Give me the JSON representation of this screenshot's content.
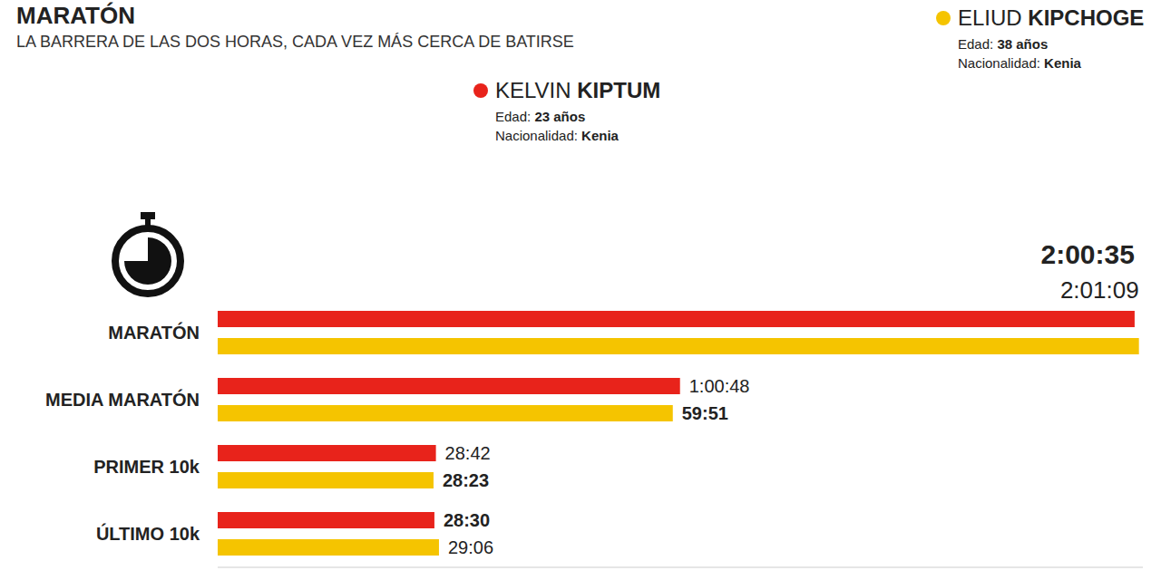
{
  "chart_data": {
    "type": "bar",
    "title": "MARATÓN",
    "subtitle": "LA BARRERA DE LAS DOS HORAS, CADA VEZ MÁS CERCA DE BATIRSE",
    "orientation": "horizontal",
    "data_labels": true,
    "tick_labels": "y",
    "categories": [
      "MARATÓN",
      "MEDIA MARATÓN",
      "PRIMER 10k",
      "ÚLTIMO 10k"
    ],
    "xlim": [
      0,
      7300
    ],
    "annotations": {
      "age_label": "Edad:",
      "nationality_label": "Nacionalidad:"
    },
    "series": [
      {
        "name": "KELVIN KIPTUM",
        "color": "#e8231b",
        "age": "23 años",
        "nationality": "Kenia",
        "values": [
          7235,
          3648,
          1722,
          1710
        ],
        "value_labels": [
          "2:00:35",
          "1:00:48",
          "28:42",
          "28:30"
        ]
      },
      {
        "name": "ELIUD KIPCHOGE",
        "color": "#f5c400",
        "age": "38 años",
        "nationality": "Kenia",
        "values": [
          7269,
          3591,
          1703,
          1746
        ],
        "value_labels": [
          "2:01:09",
          "59:51",
          "28:23",
          "29:06"
        ]
      }
    ]
  }
}
